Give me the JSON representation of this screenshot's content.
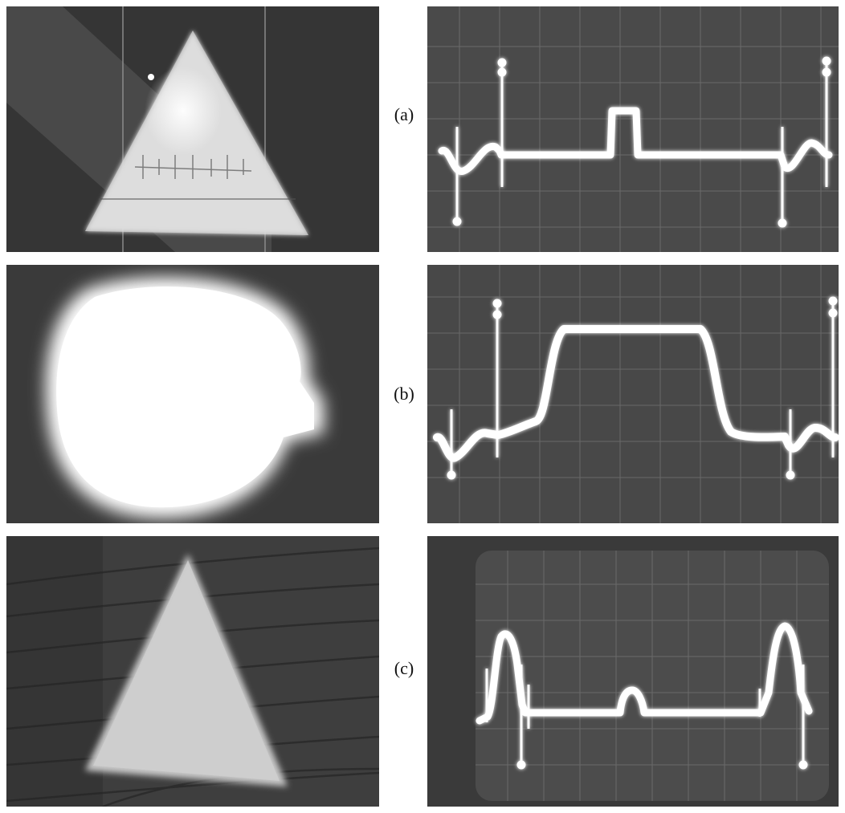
{
  "figure": {
    "panels": [
      {
        "label": "(a)",
        "image_subject": "triangle",
        "waveform_subject": "oscilloscope-trace-a"
      },
      {
        "label": "(b)",
        "image_subject": "bright-disk",
        "waveform_subject": "oscilloscope-trace-b"
      },
      {
        "label": "(c)",
        "image_subject": "triangle-blurred",
        "waveform_subject": "oscilloscope-trace-c"
      }
    ]
  },
  "colors": {
    "background": "#ffffff",
    "photo_dark": "#3a3a3a",
    "trace": "#ffffff"
  }
}
